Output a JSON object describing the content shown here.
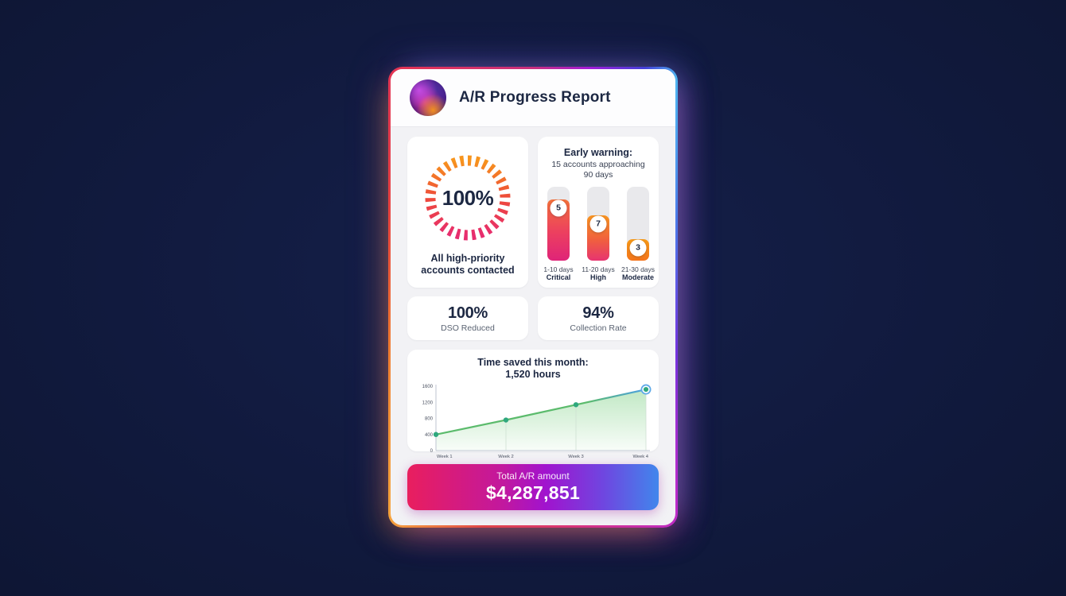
{
  "header": {
    "title": "A/R Progress Report"
  },
  "ring_panel": {
    "percent": "100%",
    "caption_line1": "All high-priority",
    "caption_line2": "accounts contacted"
  },
  "early_warning": {
    "title": "Early warning:",
    "subtitle_line1": "15 accounts approaching",
    "subtitle_line2": "90 days",
    "bars": [
      {
        "value": "5",
        "fill_percent": 83,
        "range": "1-10 days",
        "severity": "Critical"
      },
      {
        "value": "7",
        "fill_percent": 61,
        "range": "11-20 days",
        "severity": "High"
      },
      {
        "value": "3",
        "fill_percent": 29,
        "range": "21-30 days",
        "severity": "Moderate"
      }
    ]
  },
  "stats": [
    {
      "value": "100%",
      "label": "DSO Reduced"
    },
    {
      "value": "94%",
      "label": "Collection Rate"
    }
  ],
  "chart_data": {
    "type": "area",
    "title": "Time saved this month: 1,520 hours",
    "title_line1": "Time saved this month:",
    "title_line2": "1,520 hours",
    "x": [
      "Week 1",
      "Week 2",
      "Week 3",
      "Week 4"
    ],
    "values": [
      400,
      760,
      1140,
      1520
    ],
    "yticks": [
      0,
      400,
      800,
      1200,
      1600
    ],
    "ylim": [
      0,
      1600
    ],
    "xlabel": "",
    "ylabel": "",
    "grid": false,
    "legend": "none",
    "line_color_start": "#5bbb6c",
    "line_color_end": "#4c9fe6",
    "area_color": "#8ed694"
  },
  "total": {
    "label": "Total A/R amount",
    "amount": "$4,287,851"
  },
  "colors": {
    "background": "#111a3e",
    "card_body": "#f2f2f5",
    "text_dark": "#1c2742",
    "ring_start": "#e72d6f",
    "ring_end": "#f7941d",
    "button_gradient": [
      "#e91e5e",
      "#a113ce",
      "#4186ec"
    ]
  }
}
